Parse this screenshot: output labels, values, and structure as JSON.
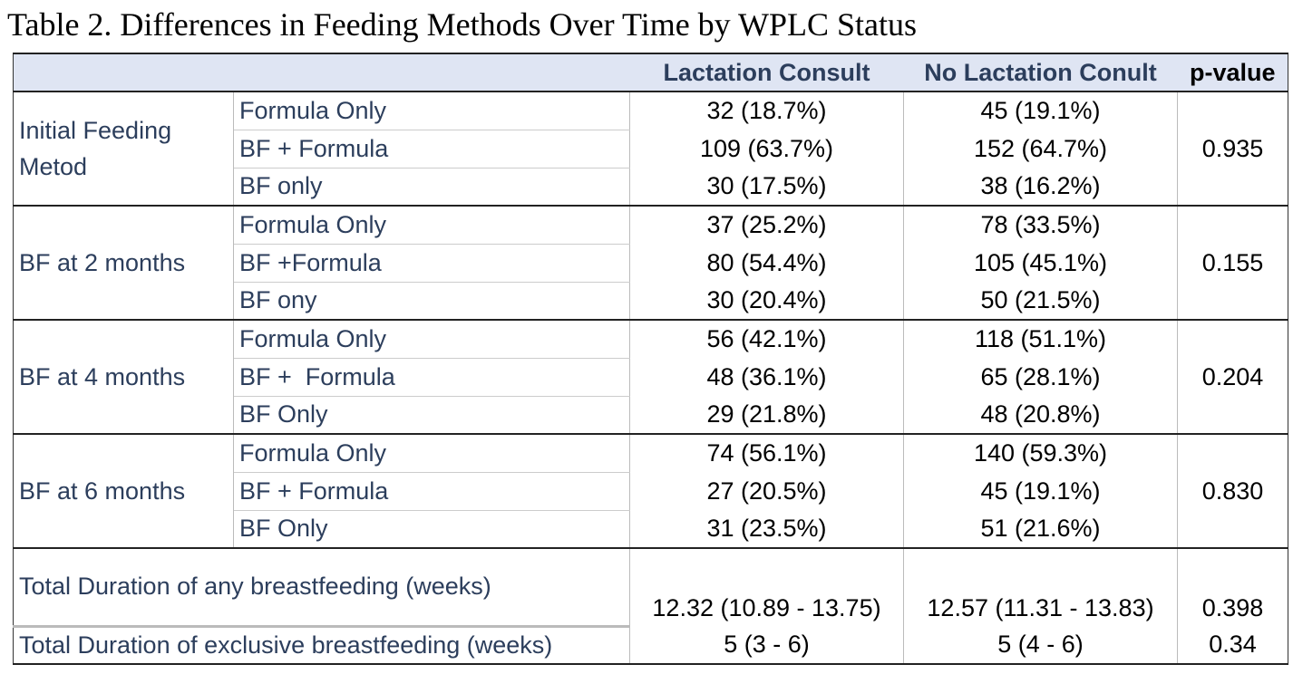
{
  "caption": "Table 2. Differences in Feeding Methods Over Time by WPLC Status",
  "headers": {
    "col1": "Lactation Consult",
    "col2": "No Lactation Conult",
    "col3": "p-value"
  },
  "groups": [
    {
      "label": "Initial Feeding Metod",
      "p": "0.935",
      "rows": [
        {
          "label": "Formula Only",
          "lc": "32 (18.7%)",
          "nlc": "45 (19.1%)"
        },
        {
          "label": "BF + Formula",
          "lc": "109 (63.7%)",
          "nlc": "152 (64.7%)"
        },
        {
          "label": "BF only",
          "lc": "30 (17.5%)",
          "nlc": "38 (16.2%)"
        }
      ]
    },
    {
      "label": "BF at 2 months",
      "p": "0.155",
      "rows": [
        {
          "label": "Formula Only",
          "lc": "37 (25.2%)",
          "nlc": "78 (33.5%)"
        },
        {
          "label": "BF +Formula",
          "lc": "80 (54.4%)",
          "nlc": "105 (45.1%)"
        },
        {
          "label": "BF ony",
          "lc": "30 (20.4%)",
          "nlc": "50 (21.5%)"
        }
      ]
    },
    {
      "label": "BF at 4 months",
      "p": "0.204",
      "rows": [
        {
          "label": "Formula Only",
          "lc": "56 (42.1%)",
          "nlc": "118 (51.1%)"
        },
        {
          "label": "BF +  Formula",
          "lc": "48 (36.1%)",
          "nlc": "65 (28.1%)"
        },
        {
          "label": "BF Only",
          "lc": "29 (21.8%)",
          "nlc": "48 (20.8%)"
        }
      ]
    },
    {
      "label": "BF at 6 months",
      "p": "0.830",
      "rows": [
        {
          "label": "Formula Only",
          "lc": "74 (56.1%)",
          "nlc": "140 (59.3%)"
        },
        {
          "label": "BF + Formula",
          "lc": "27 (20.5%)",
          "nlc": "45 (19.1%)"
        },
        {
          "label": "BF Only",
          "lc": "31 (23.5%)",
          "nlc": "51 (21.6%)"
        }
      ]
    }
  ],
  "totals": [
    {
      "label": "Total Duration of any breastfeeding (weeks)",
      "lc": "12.32 (10.89 - 13.75)",
      "nlc": "12.57 (11.31 - 13.83)",
      "p": "0.398"
    },
    {
      "label": "Total Duration of exclusive breastfeeding (weeks)",
      "lc": "5 (3 - 6)",
      "nlc": "5 (4 - 6)",
      "p": "0.34"
    }
  ]
}
